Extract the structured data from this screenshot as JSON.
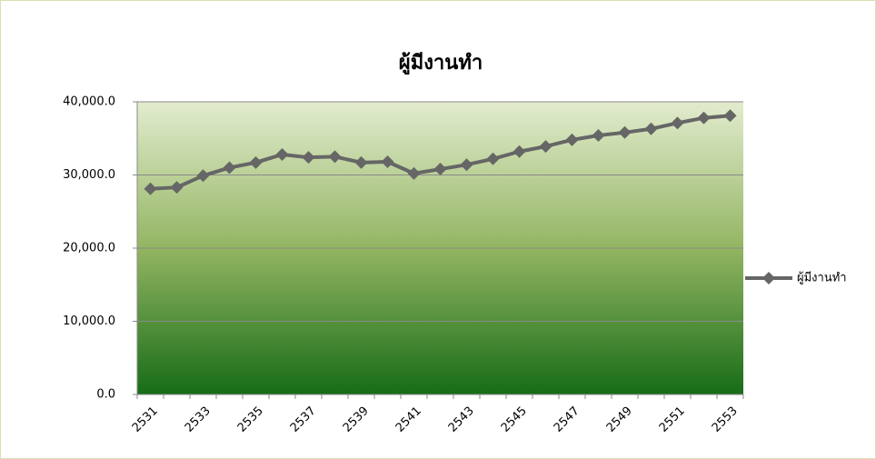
{
  "chart_data": {
    "type": "line",
    "title": "ผู้มีงานทำ",
    "categories": [
      "2531",
      null,
      "2533",
      null,
      "2535",
      null,
      "2537",
      null,
      "2539",
      null,
      "2541",
      null,
      "2543",
      null,
      "2545",
      null,
      "2547",
      null,
      "2549",
      null,
      "2551",
      null,
      "2553"
    ],
    "series": [
      {
        "name": "ผู้มีงานทำ",
        "color": "#666666",
        "values": [
          28100,
          28300,
          29900,
          31000,
          31700,
          32800,
          32400,
          32500,
          31700,
          31800,
          30200,
          30800,
          31400,
          32200,
          33200,
          33900,
          34800,
          35400,
          35800,
          36300,
          37100,
          37800,
          38100
        ]
      }
    ],
    "ylim": [
      0,
      40000
    ],
    "yticks": [
      {
        "value": 0,
        "label": "0.0"
      },
      {
        "value": 10000,
        "label": "10,000.0"
      },
      {
        "value": 20000,
        "label": "20,000.0"
      },
      {
        "value": 30000,
        "label": "30,000.0"
      },
      {
        "value": 40000,
        "label": "40,000.0"
      }
    ],
    "grid": true,
    "legend": "right"
  }
}
